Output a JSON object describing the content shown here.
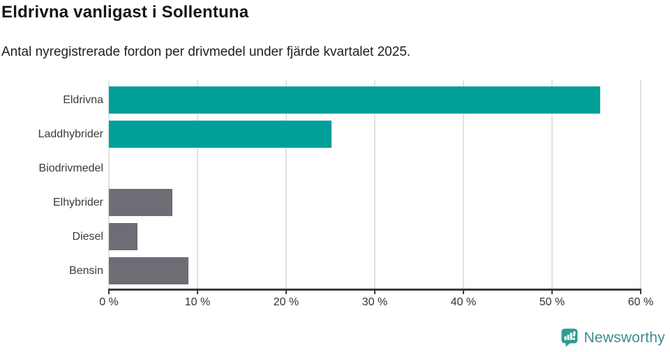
{
  "header": {
    "title": "Eldrivna vanligast i Sollentuna",
    "subtitle": "Antal nyregistrerade fordon per drivmedel under fjärde kvartalet 2025."
  },
  "chart_data": {
    "type": "bar",
    "orientation": "horizontal",
    "title": "Eldrivna vanligast i Sollentuna",
    "subtitle": "Antal nyregistrerade fordon per drivmedel under fjärde kvartalet 2025.",
    "categories": [
      "Eldrivna",
      "Laddhybrider",
      "Biodrivmedel",
      "Elhybrider",
      "Diesel",
      "Bensin"
    ],
    "values": [
      55.4,
      25.1,
      0,
      7.2,
      3.2,
      9.0
    ],
    "unit": "%",
    "xlabel": "",
    "ylabel": "",
    "xlim": [
      0,
      60
    ],
    "xticks": [
      0,
      10,
      20,
      30,
      40,
      50,
      60
    ],
    "xtick_suffix": " %",
    "bar_colors": [
      "#00a099",
      "#00a099",
      "#00a099",
      "#6e6d75",
      "#6e6d75",
      "#6e6d75"
    ],
    "grid": "vertical",
    "legend": "none"
  },
  "footer": {
    "brand": "Newsworthy"
  },
  "colors": {
    "accent_teal": "#00a099",
    "neutral_gray": "#6e6d75",
    "gridline": "#e2e2e2",
    "axis": "#3b3b3b",
    "text": "#3a3a3a",
    "logo_teal": "#2f9b93",
    "logo_text": "#3f8d8b"
  }
}
